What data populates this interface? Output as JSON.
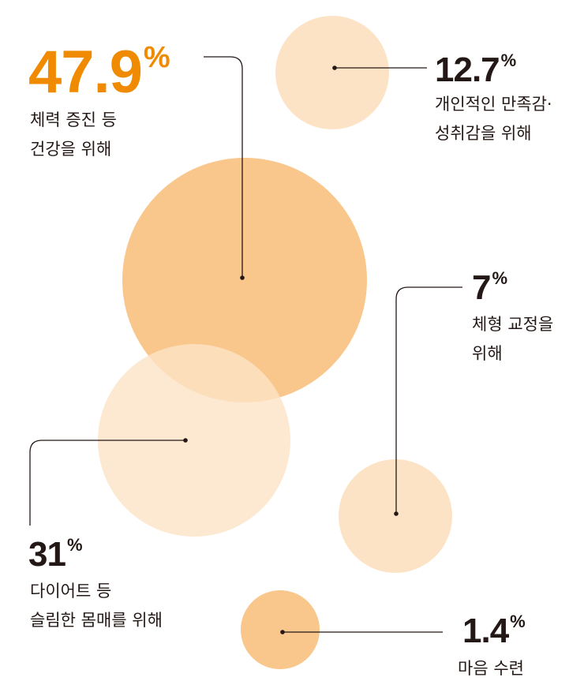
{
  "colors": {
    "accent": "#F08A00",
    "text": "#231815",
    "strong": "#F9C68B",
    "light": "#FDE3C6",
    "line": "#231815"
  },
  "chart_data": {
    "type": "bubble",
    "unit": "%",
    "items": [
      {
        "value": "47.9",
        "pct": "%",
        "line1": "체력 증진 등",
        "line2": "건강을 위해",
        "shade": "strong",
        "highlight": true
      },
      {
        "value": "12.7",
        "pct": "%",
        "line1": "개인적인 만족감·",
        "line2": "성취감을 위해",
        "shade": "light"
      },
      {
        "value": "7",
        "pct": "%",
        "line1": "체형 교정을",
        "line2": "위해",
        "shade": "light"
      },
      {
        "value": "31",
        "pct": "%",
        "line1": "다이어트 등",
        "line2": "슬림한 몸매를 위해",
        "shade": "light"
      },
      {
        "value": "1.4",
        "pct": "%",
        "line1": "마음 수련",
        "line2": "",
        "shade": "strong"
      }
    ]
  }
}
